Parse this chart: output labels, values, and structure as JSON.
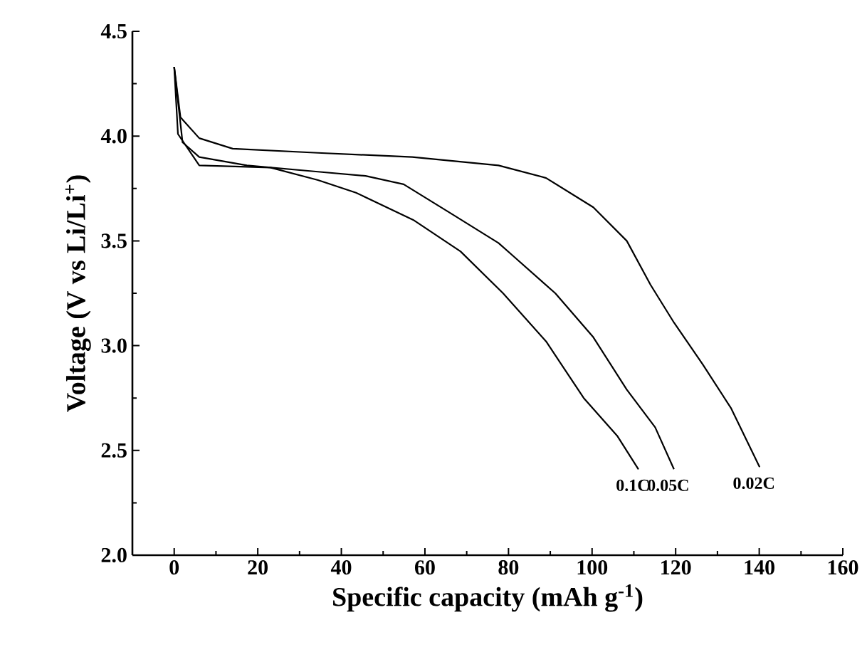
{
  "chart_data": {
    "type": "line",
    "xlabel": "Specific capacity (mAh g$^{-1}$)",
    "ylabel": "Voltage (V vs Li/Li$^{+}$)",
    "xlim": [
      -10,
      160
    ],
    "ylim": [
      2.0,
      4.5
    ],
    "xticks": [
      0,
      {
        "value": 10,
        "label": null
      },
      20,
      {
        "value": 30,
        "label": null
      },
      40,
      {
        "value": 50,
        "label": null
      },
      60,
      {
        "value": 70,
        "label": null
      },
      80,
      {
        "value": 90,
        "label": null
      },
      100,
      {
        "value": 110,
        "label": null
      },
      120,
      {
        "value": 130,
        "label": null
      },
      140,
      {
        "value": 150,
        "label": null
      },
      160
    ],
    "yticks": [
      {
        "value": 2.0,
        "label": "2.0"
      },
      {
        "value": 2.25,
        "label": null
      },
      {
        "value": 2.5,
        "label": "2.5"
      },
      {
        "value": 2.75,
        "label": null
      },
      {
        "value": 3.0,
        "label": "3.0"
      },
      {
        "value": 3.25,
        "label": null
      },
      {
        "value": 3.5,
        "label": "3.5"
      },
      {
        "value": 3.75,
        "label": null
      },
      {
        "value": 4.0,
        "label": "4.0"
      },
      {
        "value": 4.25,
        "label": null
      },
      {
        "value": 4.5,
        "label": "4.5"
      }
    ],
    "grid": false,
    "legend": false,
    "marker": "none",
    "line_style": "solid",
    "series": [
      {
        "name": "0.1C",
        "color": "#000000",
        "x": [
          0,
          0.9,
          6,
          23,
          34.4,
          43.5,
          57.2,
          68.5,
          78.7,
          89,
          98,
          106,
          111.1
        ],
        "values": [
          4.33,
          4.01,
          3.86,
          3.85,
          3.79,
          3.73,
          3.6,
          3.45,
          3.25,
          3.02,
          2.75,
          2.57,
          2.41
        ]
      },
      {
        "name": "0.05C",
        "color": "#000000",
        "x": [
          0,
          2,
          6,
          17.4,
          34.4,
          45.8,
          54.9,
          66.3,
          77.6,
          81,
          91.2,
          100.3,
          108.3,
          115.1,
          119.6
        ],
        "values": [
          4.33,
          3.97,
          3.9,
          3.86,
          3.83,
          3.81,
          3.77,
          3.63,
          3.49,
          3.43,
          3.25,
          3.04,
          2.79,
          2.61,
          2.41
        ]
      },
      {
        "name": "0.02C",
        "color": "#000000",
        "x": [
          0,
          1.5,
          6,
          14,
          34.4,
          57,
          77.6,
          89,
          100.3,
          108.3,
          114,
          119.6,
          126.5,
          133.3,
          140.1
        ],
        "values": [
          4.33,
          4.09,
          3.99,
          3.94,
          3.92,
          3.9,
          3.86,
          3.8,
          3.66,
          3.5,
          3.29,
          3.11,
          2.91,
          2.7,
          2.42
        ]
      }
    ]
  }
}
